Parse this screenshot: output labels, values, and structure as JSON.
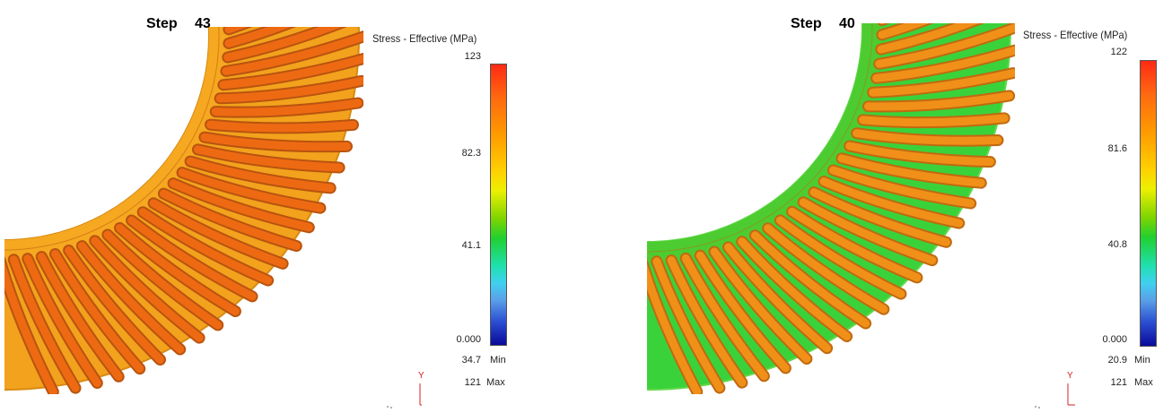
{
  "panels": [
    {
      "step_label": "Step",
      "step_value": "43",
      "legend_title": "Stress - Effective (MPa)",
      "scale_ticks": [
        "123",
        "82.3",
        "41.1",
        "0.000"
      ],
      "min_value": "34.7",
      "min_label": "Min",
      "max_value": "121",
      "max_label": "Max",
      "axis_y": "Y",
      "gear_colors": {
        "base": "#f2a21c",
        "shade": "#d88a12",
        "rib": "#ee6a12",
        "rib_edge": "#b85410",
        "ring": "#f5a820"
      }
    },
    {
      "step_label": "Step",
      "step_value": "40",
      "legend_title": "Stress - Effective (MPa)",
      "scale_ticks": [
        "122",
        "81.6",
        "40.8",
        "0.000"
      ],
      "min_value": "20.9",
      "min_label": "Min",
      "max_value": "121",
      "max_label": "Max",
      "axis_y": "Y",
      "gear_colors": {
        "base": "#3ad23a",
        "shade": "#62d84a",
        "rib": "#f09018",
        "rib_edge": "#c06a10",
        "ring": "#4ccc30"
      }
    }
  ]
}
